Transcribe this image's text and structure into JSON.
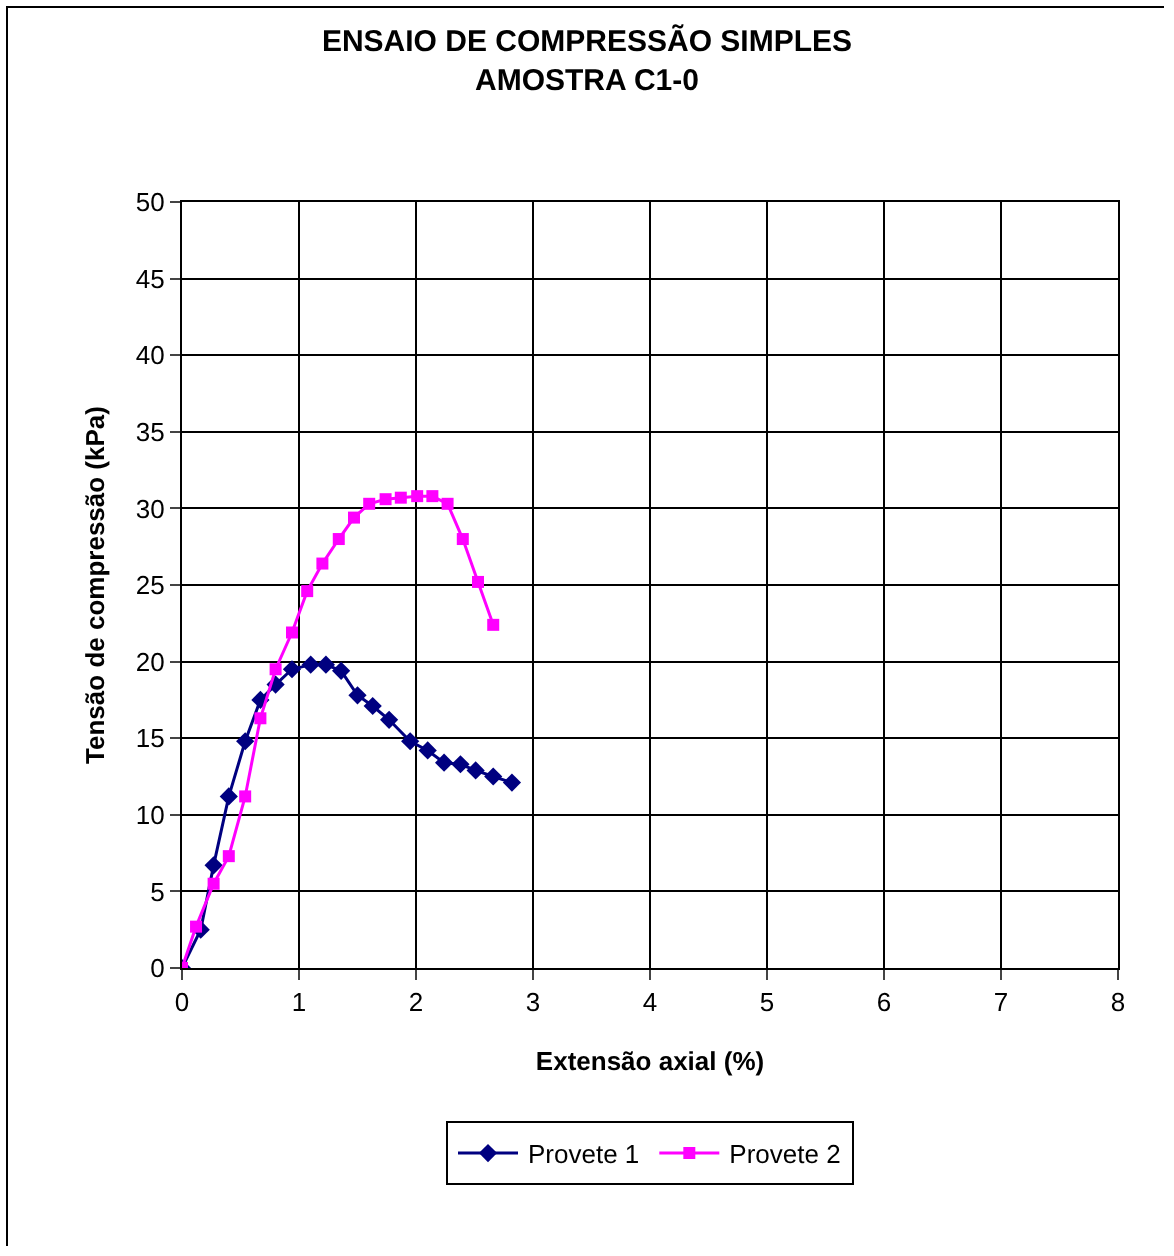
{
  "chart_data": {
    "type": "line",
    "title": "ENSAIO DE COMPRESSÃO SIMPLES\nAMOSTRA C1-0",
    "xlabel": "Extensão axial (%)",
    "ylabel": "Tensão de compressão (kPa)",
    "xlim": [
      0,
      8
    ],
    "xticks": [
      0,
      1,
      2,
      3,
      4,
      5,
      6,
      7,
      8
    ],
    "ylim": [
      0,
      50
    ],
    "yticks": [
      0,
      5,
      10,
      15,
      20,
      25,
      30,
      35,
      40,
      45,
      50
    ],
    "grid": true,
    "legend": "bottom",
    "series": [
      {
        "name": "Provete 1",
        "color": "#000080",
        "marker": "diamond",
        "x": [
          0,
          0.16,
          0.27,
          0.4,
          0.54,
          0.67,
          0.8,
          0.94,
          1.1,
          1.23,
          1.36,
          1.5,
          1.63,
          1.77,
          1.95,
          2.1,
          2.24,
          2.38,
          2.51,
          2.66,
          2.82
        ],
        "values": [
          0,
          2.5,
          6.7,
          11.2,
          14.8,
          17.5,
          18.5,
          19.5,
          19.8,
          19.8,
          19.4,
          17.8,
          17.1,
          16.2,
          14.8,
          14.2,
          13.4,
          13.3,
          12.9,
          12.5,
          12.1
        ]
      },
      {
        "name": "Provete 2",
        "color": "#ff00ff",
        "marker": "square",
        "x": [
          0,
          0.12,
          0.27,
          0.4,
          0.54,
          0.67,
          0.8,
          0.94,
          1.07,
          1.2,
          1.34,
          1.47,
          1.6,
          1.74,
          1.87,
          2.01,
          2.14,
          2.27,
          2.4,
          2.53,
          2.66
        ],
        "values": [
          0,
          2.7,
          5.5,
          7.3,
          11.2,
          16.3,
          19.5,
          21.9,
          24.6,
          26.4,
          28.0,
          29.4,
          30.3,
          30.6,
          30.7,
          30.8,
          30.8,
          30.3,
          28.0,
          25.2,
          22.4
        ]
      }
    ]
  }
}
